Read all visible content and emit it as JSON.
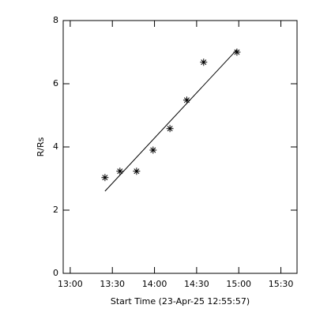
{
  "chart_data": {
    "type": "scatter",
    "x_label": "Start Time (23-Apr-25 12:55:57)",
    "y_label": "R/Rs",
    "x": [
      804.75,
      815.4,
      827.25,
      839,
      851,
      863,
      875,
      898.7
    ],
    "values": [
      3.03,
      3.23,
      3.23,
      3.9,
      4.58,
      5.48,
      6.68,
      7.0
    ],
    "color": "#000000",
    "fit_line": {
      "x": [
        804.75,
        898.7
      ],
      "values": [
        2.6,
        7.08
      ],
      "color": "#000000"
    },
    "xlim": [
      775,
      941.5
    ],
    "ylim": [
      0,
      8
    ],
    "xticks": [
      {
        "value": 780,
        "label": "13:00"
      },
      {
        "value": 810,
        "label": "13:30"
      },
      {
        "value": 840,
        "label": "14:00"
      },
      {
        "value": 870,
        "label": "14:30"
      },
      {
        "value": 900,
        "label": "15:00"
      },
      {
        "value": 930,
        "label": "15:30"
      }
    ],
    "yticks": [
      0,
      2,
      4,
      6,
      8
    ]
  }
}
